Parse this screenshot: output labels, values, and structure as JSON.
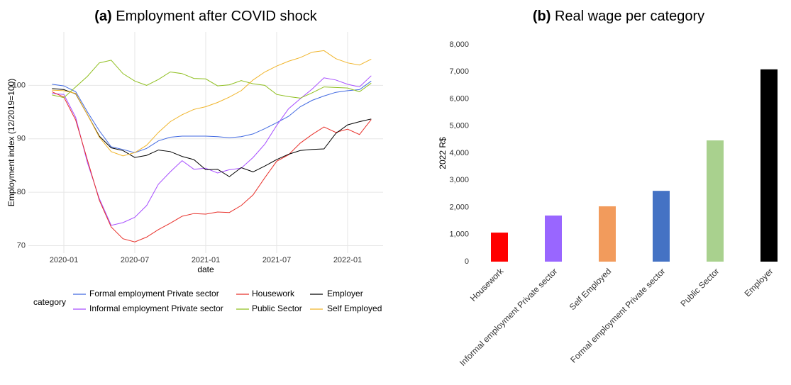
{
  "chart_data": [
    {
      "type": "line",
      "panel": "(a)",
      "title": "Employment after COVID shock",
      "x_label": "date",
      "y_label": "Employment index (12/2019=100)",
      "legend_title": "category",
      "x": [
        "2019-12",
        "2020-01",
        "2020-02",
        "2020-03",
        "2020-04",
        "2020-05",
        "2020-06",
        "2020-07",
        "2020-08",
        "2020-09",
        "2020-10",
        "2020-11",
        "2020-12",
        "2021-01",
        "2021-02",
        "2021-03",
        "2021-04",
        "2021-05",
        "2021-06",
        "2021-07",
        "2021-08",
        "2021-09",
        "2021-10",
        "2021-11",
        "2021-12",
        "2022-01",
        "2022-02",
        "2022-03"
      ],
      "xlim": [
        "2019-10",
        "2022-04"
      ],
      "xticks": [
        "2020-01",
        "2020-07",
        "2021-01",
        "2021-07",
        "2022-01"
      ],
      "ylim": [
        68.6,
        110
      ],
      "yticks": [
        70,
        80,
        90,
        100
      ],
      "grid": true,
      "series": [
        {
          "name": "Formal employment Private sector",
          "color": "#4169e1",
          "values": [
            100.2,
            99.9,
            98.8,
            95,
            91.5,
            88.5,
            88,
            87.4,
            88.2,
            89.6,
            90.3,
            90.5,
            90.5,
            90.5,
            90.4,
            90.2,
            90.4,
            90.9,
            91.9,
            93,
            94.2,
            96,
            97.2,
            98,
            98.7,
            99,
            99.2,
            100.8
          ]
        },
        {
          "name": "Informal employment Private sector",
          "color": "#a64dff",
          "values": [
            98.5,
            98.3,
            94,
            85.5,
            78.8,
            73.8,
            74.3,
            75.3,
            77.5,
            81.5,
            83.8,
            85.9,
            84.3,
            84.5,
            83.6,
            84.2,
            84.5,
            86.5,
            89,
            92.5,
            95.6,
            97.5,
            99.3,
            101.4,
            101,
            100.2,
            99.7,
            101.8
          ]
        },
        {
          "name": "Housework",
          "color": "#e8302a",
          "values": [
            98.8,
            97.8,
            93.5,
            86,
            78.5,
            73.5,
            71.3,
            70.7,
            71.6,
            73,
            74.2,
            75.5,
            76,
            75.9,
            76.3,
            76.2,
            77.5,
            79.5,
            82.7,
            85.8,
            87,
            89.2,
            90.8,
            92.2,
            91.2,
            91.8,
            90.8,
            93.6
          ]
        },
        {
          "name": "Public Sector",
          "color": "#8fbf1f",
          "values": [
            98.2,
            97.7,
            99.7,
            101.7,
            104.2,
            104.7,
            102.2,
            100.8,
            100,
            101.1,
            102.5,
            102.2,
            101.3,
            101.2,
            99.9,
            100.1,
            100.9,
            100.3,
            100,
            98.3,
            97.9,
            97.6,
            98.6,
            99.7,
            99.6,
            99.5,
            98.8,
            100.4
          ]
        },
        {
          "name": "Employer",
          "color": "#000000",
          "values": [
            99.4,
            99.2,
            98.4,
            94.5,
            90.5,
            88.3,
            87.8,
            86.5,
            86.9,
            87.9,
            87.6,
            86.7,
            86.1,
            84.2,
            84.3,
            82.9,
            84.6,
            83.8,
            84.9,
            86.1,
            87.1,
            87.8,
            88,
            88.1,
            91,
            92.6,
            93.2,
            93.7
          ]
        },
        {
          "name": "Self Employed",
          "color": "#f0b429",
          "values": [
            99.1,
            99,
            98.5,
            94.5,
            90.3,
            87.6,
            86.8,
            87.4,
            88.8,
            91.2,
            93.2,
            94.5,
            95.5,
            96,
            96.8,
            97.8,
            99,
            101,
            102.5,
            103.6,
            104.5,
            105.2,
            106.2,
            106.5,
            105,
            104.2,
            103.8,
            104.9
          ]
        }
      ]
    },
    {
      "type": "bar",
      "panel": "(b)",
      "title": "Real wage per category",
      "y_label": "2022 R$",
      "categories": [
        "Housework",
        "Informal employment Private sector",
        "Self Employed",
        "Formal employment Private sector",
        "Public Sector",
        "Employer"
      ],
      "values": [
        1070,
        1700,
        2040,
        2610,
        4470,
        7090
      ],
      "colors": [
        "#ff0000",
        "#9966ff",
        "#f29b5c",
        "#4472c4",
        "#a9d18e",
        "#000000"
      ],
      "ylim": [
        0,
        8000
      ],
      "yticks": [
        0,
        {
          "value": 1000,
          "label": "1,000"
        },
        {
          "value": 2000,
          "label": "2,000"
        },
        {
          "value": 3000,
          "label": "3,000"
        },
        {
          "value": 4000,
          "label": "4,000"
        },
        {
          "value": 5000,
          "label": "5,000"
        },
        {
          "value": 6000,
          "label": "6,000"
        },
        {
          "value": 7000,
          "label": "7,000"
        },
        {
          "value": 8000,
          "label": "8,000"
        }
      ],
      "grid": false
    }
  ]
}
